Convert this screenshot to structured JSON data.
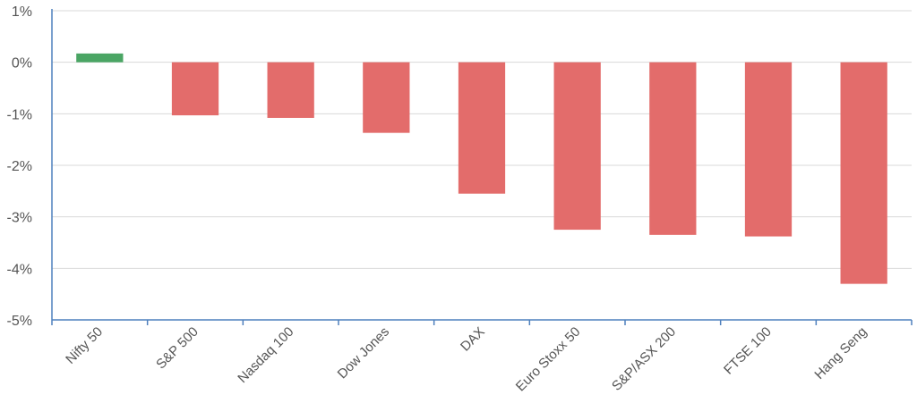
{
  "chart_data": {
    "type": "bar",
    "title": "",
    "xlabel": "",
    "ylabel": "",
    "categories": [
      "Nifty 50",
      "S&P 500",
      "Nasdaq 100",
      "Dow Jones",
      "DAX",
      "Euro Stoxx 50",
      "S&P/ASX 200",
      "FTSE 100",
      "Hang Seng"
    ],
    "values": [
      0.17,
      -1.03,
      -1.08,
      -1.37,
      -2.55,
      -3.25,
      -3.35,
      -3.38,
      -4.3
    ],
    "ylim": [
      -5,
      1
    ],
    "yticks": [
      1,
      0,
      -1,
      -2,
      -3,
      -4,
      -5
    ],
    "ytick_labels": [
      "1%",
      "0%",
      "-1%",
      "-2%",
      "-3%",
      "-4%",
      "-5%"
    ],
    "grid": true,
    "legend": "none",
    "colors": {
      "positive": "#4aa564",
      "negative": "#e36c6b",
      "grid": "#d9d9d9",
      "axis": "#4f81bd"
    }
  }
}
